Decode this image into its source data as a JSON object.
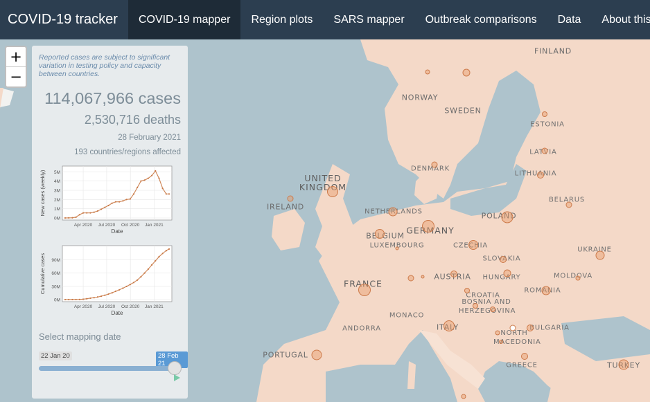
{
  "navbar": {
    "brand": "COVID-19 tracker",
    "tabs": [
      {
        "label": "COVID-19 mapper",
        "active": true
      },
      {
        "label": "Region plots"
      },
      {
        "label": "SARS mapper"
      },
      {
        "label": "Outbreak comparisons"
      },
      {
        "label": "Data"
      },
      {
        "label": "About this site"
      }
    ]
  },
  "map": {
    "zoom_in": "+",
    "zoom_out": "−",
    "labels": [
      "FINLAND",
      "NORWAY",
      "SWEDEN",
      "ESTONIA",
      "LATVIA",
      "DENMARK",
      "LITHUANIA",
      "UNITED KINGDOM",
      "IRELAND",
      "NETHERLANDS",
      "BELARUS",
      "POLAND",
      "GERMANY",
      "BELGIUM",
      "LUXEMBOURG",
      "CZECHIA",
      "UKRAINE",
      "SLOVAKIA",
      "FRANCE",
      "AUSTRIA",
      "HUNGARY",
      "MOLDOVA",
      "ROMANIA",
      "CROATIA",
      "BOSNIA AND HERZEGOVINA",
      "MONACO",
      "ANDORRA",
      "ITALY",
      "BULGARIA",
      "NORTH MACEDONIA",
      "PORTUGAL",
      "GREECE",
      "TURKEY"
    ]
  },
  "panel": {
    "note": "Reported cases are subject to significant variation in testing policy and capacity between countries.",
    "cases": "114,067,966 cases",
    "deaths": "2,530,716 deaths",
    "date": "28 February 2021",
    "affected": "193 countries/regions affected",
    "slider": {
      "label": "Select mapping date",
      "min": "22 Jan 20",
      "value": "28 Feb 21",
      "fraction": 1.0,
      "play_icon": "play-icon"
    }
  },
  "colors": {
    "navbar": "#2c3e50",
    "navbar_active": "#1e2b37",
    "bubble": "#e89b69",
    "line": "#d08a5c",
    "sea": "#aec3cc",
    "land": "#f4d9c8"
  },
  "chart_data": [
    {
      "type": "line",
      "xlabel": "Date",
      "ylabel": "New cases (weekly)",
      "xticks": [
        "Apr 2020",
        "Jul 2020",
        "Oct 2020",
        "Jan 2021"
      ],
      "yticks": [
        "0M",
        "1M",
        "2M",
        "3M",
        "4M",
        "5M"
      ],
      "ylim": [
        0,
        5.4
      ],
      "x": [
        "2020-01-22",
        "2020-02-05",
        "2020-02-19",
        "2020-03-04",
        "2020-03-18",
        "2020-04-01",
        "2020-04-15",
        "2020-04-29",
        "2020-05-13",
        "2020-05-27",
        "2020-06-10",
        "2020-06-24",
        "2020-07-08",
        "2020-07-22",
        "2020-08-05",
        "2020-08-19",
        "2020-09-02",
        "2020-09-16",
        "2020-09-30",
        "2020-10-14",
        "2020-10-28",
        "2020-11-11",
        "2020-11-25",
        "2020-12-09",
        "2020-12-23",
        "2021-01-06",
        "2021-01-20",
        "2021-02-03",
        "2021-02-17",
        "2021-02-28"
      ],
      "series": [
        {
          "values": [
            0.0,
            0.01,
            0.02,
            0.08,
            0.35,
            0.55,
            0.55,
            0.55,
            0.62,
            0.75,
            0.95,
            1.15,
            1.35,
            1.6,
            1.75,
            1.75,
            1.85,
            2.0,
            2.05,
            2.6,
            3.3,
            4.0,
            4.1,
            4.3,
            4.6,
            5.1,
            4.3,
            3.2,
            2.6,
            2.6
          ]
        }
      ]
    },
    {
      "type": "line",
      "xlabel": "Date",
      "ylabel": "Cumulative cases",
      "xticks": [
        "Apr 2020",
        "Jul 2020",
        "Oct 2020",
        "Jan 2021"
      ],
      "yticks": [
        "0M",
        "30M",
        "60M",
        "90M"
      ],
      "ylim": [
        0,
        117
      ],
      "x": [
        "2020-01-22",
        "2020-02-05",
        "2020-02-19",
        "2020-03-04",
        "2020-03-18",
        "2020-04-01",
        "2020-04-15",
        "2020-04-29",
        "2020-05-13",
        "2020-05-27",
        "2020-06-10",
        "2020-06-24",
        "2020-07-08",
        "2020-07-22",
        "2020-08-05",
        "2020-08-19",
        "2020-09-02",
        "2020-09-16",
        "2020-09-30",
        "2020-10-14",
        "2020-10-28",
        "2020-11-11",
        "2020-11-25",
        "2020-12-09",
        "2020-12-23",
        "2021-01-06",
        "2021-01-20",
        "2021-02-03",
        "2021-02-17",
        "2021-02-28"
      ],
      "series": [
        {
          "values": [
            0.0,
            0.0,
            0.08,
            0.1,
            0.2,
            0.9,
            2.0,
            3.2,
            4.3,
            5.8,
            7.6,
            9.8,
            12.4,
            15.3,
            18.7,
            22.1,
            25.7,
            29.7,
            34.0,
            38.5,
            44.1,
            51.5,
            59.9,
            68.6,
            78.2,
            87.4,
            96.6,
            104.0,
            110.4,
            114.1
          ]
        }
      ]
    }
  ]
}
